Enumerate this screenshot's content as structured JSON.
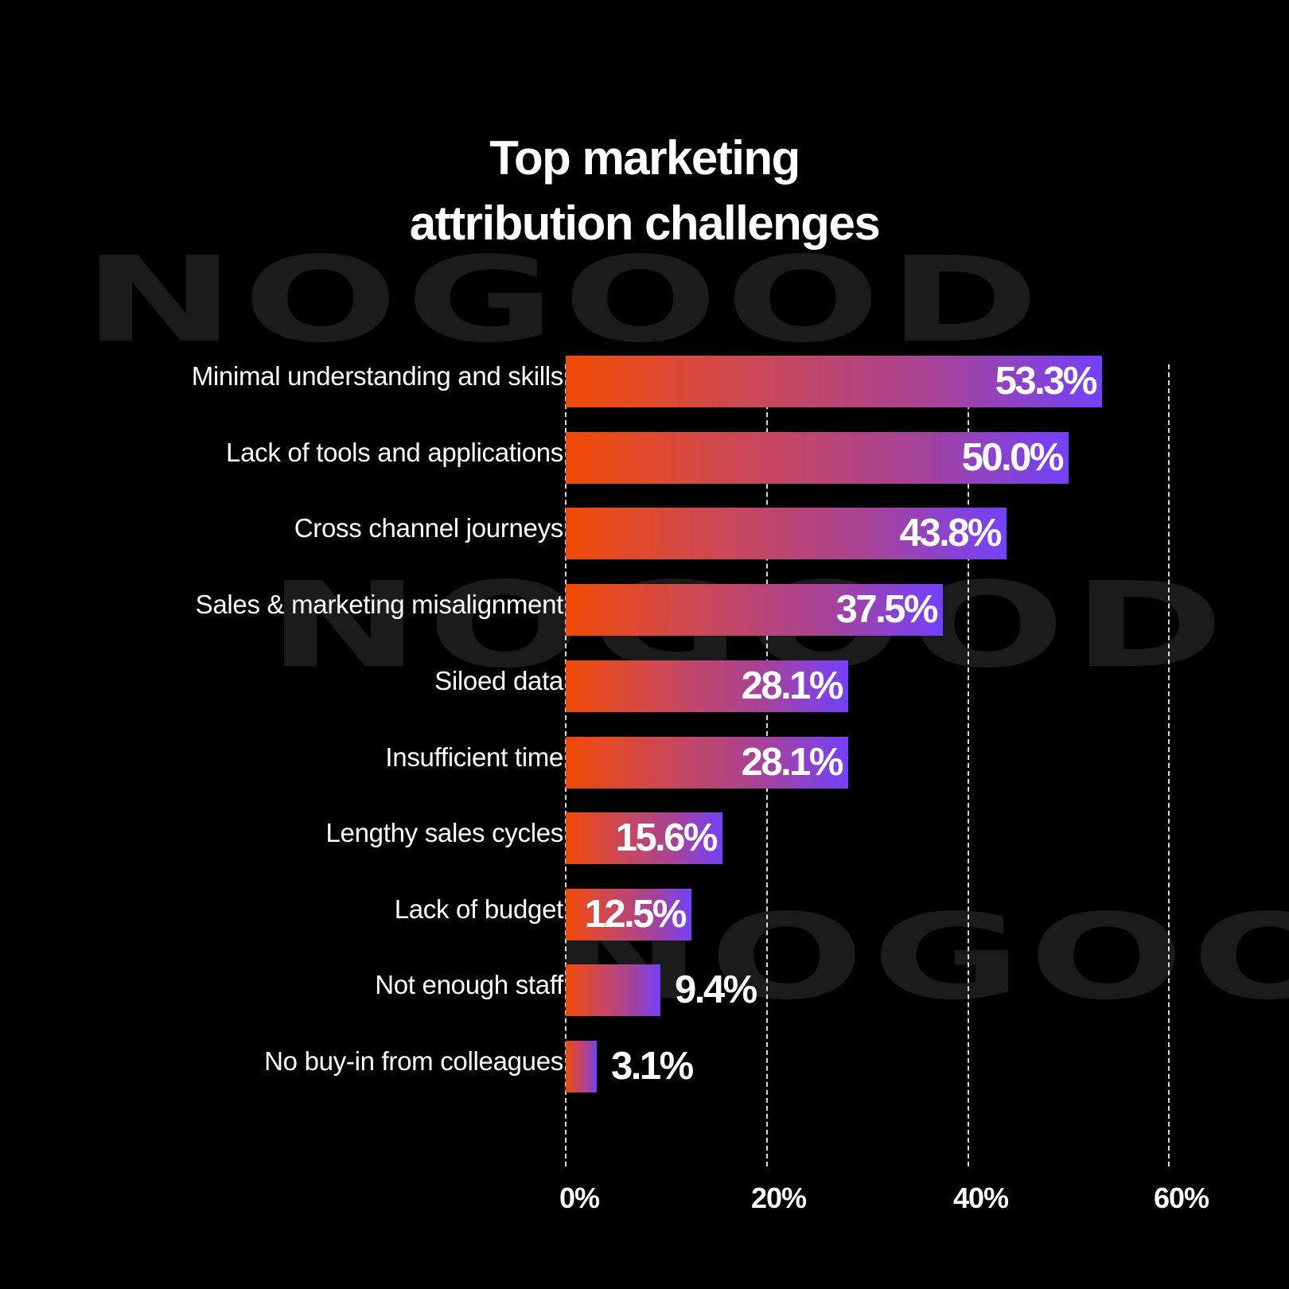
{
  "title": {
    "line1": "Top marketing",
    "line2": "attribution challenges"
  },
  "watermark": {
    "text": "NOGOOD",
    "color": "#1b1b1b"
  },
  "colors": {
    "background": "#000000",
    "bar_gradient_start": "#F24A05",
    "bar_gradient_end": "#7341FC",
    "text": "#ffffff"
  },
  "axis": {
    "ticks": [
      "0%",
      "20%",
      "40%",
      "60%"
    ]
  },
  "rows": [
    {
      "label": "Minimal understanding and skills",
      "value_label": "53.3%"
    },
    {
      "label": "Lack of tools and applications",
      "value_label": "50.0%"
    },
    {
      "label": "Cross channel journeys",
      "value_label": "43.8%"
    },
    {
      "label": "Sales & marketing misalignment",
      "value_label": "37.5%"
    },
    {
      "label": "Siloed data",
      "value_label": "28.1%"
    },
    {
      "label": "Insufficient time",
      "value_label": "28.1%"
    },
    {
      "label": "Lengthy sales cycles",
      "value_label": "15.6%"
    },
    {
      "label": "Lack of budget",
      "value_label": "12.5%"
    },
    {
      "label": "Not enough staff",
      "value_label": "9.4%"
    },
    {
      "label": "No buy-in from colleagues",
      "value_label": "3.1%"
    }
  ],
  "chart_data": {
    "type": "bar",
    "orientation": "horizontal",
    "title": "Top marketing attribution challenges",
    "categories": [
      "Minimal understanding and skills",
      "Lack of tools and applications",
      "Cross channel journeys",
      "Sales & marketing misalignment",
      "Siloed data",
      "Insufficient time",
      "Lengthy sales cycles",
      "Lack of budget",
      "Not enough staff",
      "No buy-in from colleagues"
    ],
    "values": [
      53.3,
      50.0,
      43.8,
      37.5,
      28.1,
      28.1,
      15.6,
      12.5,
      9.4,
      3.1
    ],
    "xlabel": "",
    "ylabel": "",
    "xlim": [
      0,
      60
    ],
    "xticks": [
      "0%",
      "20%",
      "40%",
      "60%"
    ],
    "grid": "vertical dashed at 0/20/40/60",
    "legend": "none",
    "data_labels": true
  }
}
